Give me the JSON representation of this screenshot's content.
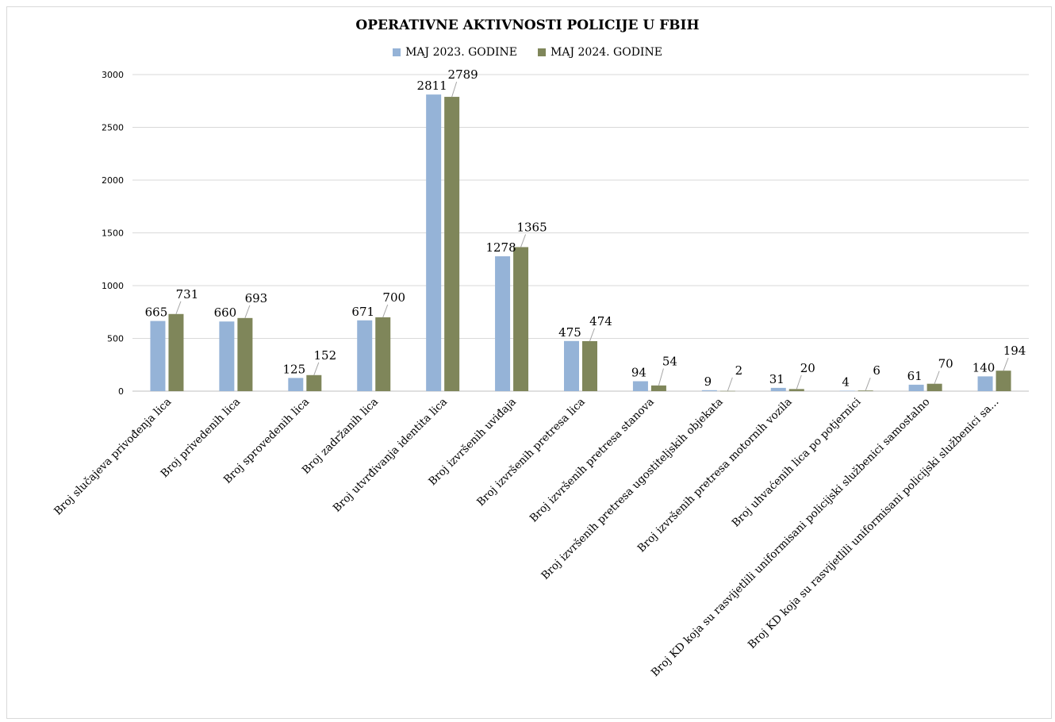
{
  "chart_data": {
    "type": "bar",
    "title": "OPERATIVNE AKTIVNOSTI POLICIJE U FBIH",
    "xlabel": "",
    "ylabel": "",
    "ylim": [
      0,
      3000
    ],
    "yticks": [
      "0",
      "500",
      "1000",
      "1500",
      "2000",
      "2500",
      "3000"
    ],
    "grid": true,
    "legend_position": "top",
    "categories": [
      "Broj slučajeva privođenja lica",
      "Broj privedenih lica",
      "Broj sprovedenih lica",
      "Broj zadržanih lica",
      "Broj utvrđivanja identita lica",
      "Broj izvršenih uviđaja",
      "Broj izvršenih pretresa lica",
      "Broj izvršenih pretresa stanova",
      "Broj izvršenih pretresa ugostiteljskih objekata",
      "Broj izvršenih pretresa motornih vozila",
      "Broj uhvaćenih lica po potjernici",
      "Broj KD koja su rasvijetlili uniformisani policijski službenici  samostalno",
      "Broj KD koja su rasvijetlili uniformisani policijski službenici sa..."
    ],
    "series": [
      {
        "name": "MAJ 2023. GODINE",
        "color": "#95b3d7",
        "values": [
          665,
          660,
          125,
          671,
          2811,
          1278,
          475,
          94,
          9,
          31,
          4,
          61,
          140
        ]
      },
      {
        "name": "MAJ 2024. GODINE",
        "color": "#7f865a",
        "values": [
          731,
          693,
          152,
          700,
          2789,
          1365,
          474,
          54,
          2,
          20,
          6,
          70,
          194
        ]
      }
    ]
  }
}
